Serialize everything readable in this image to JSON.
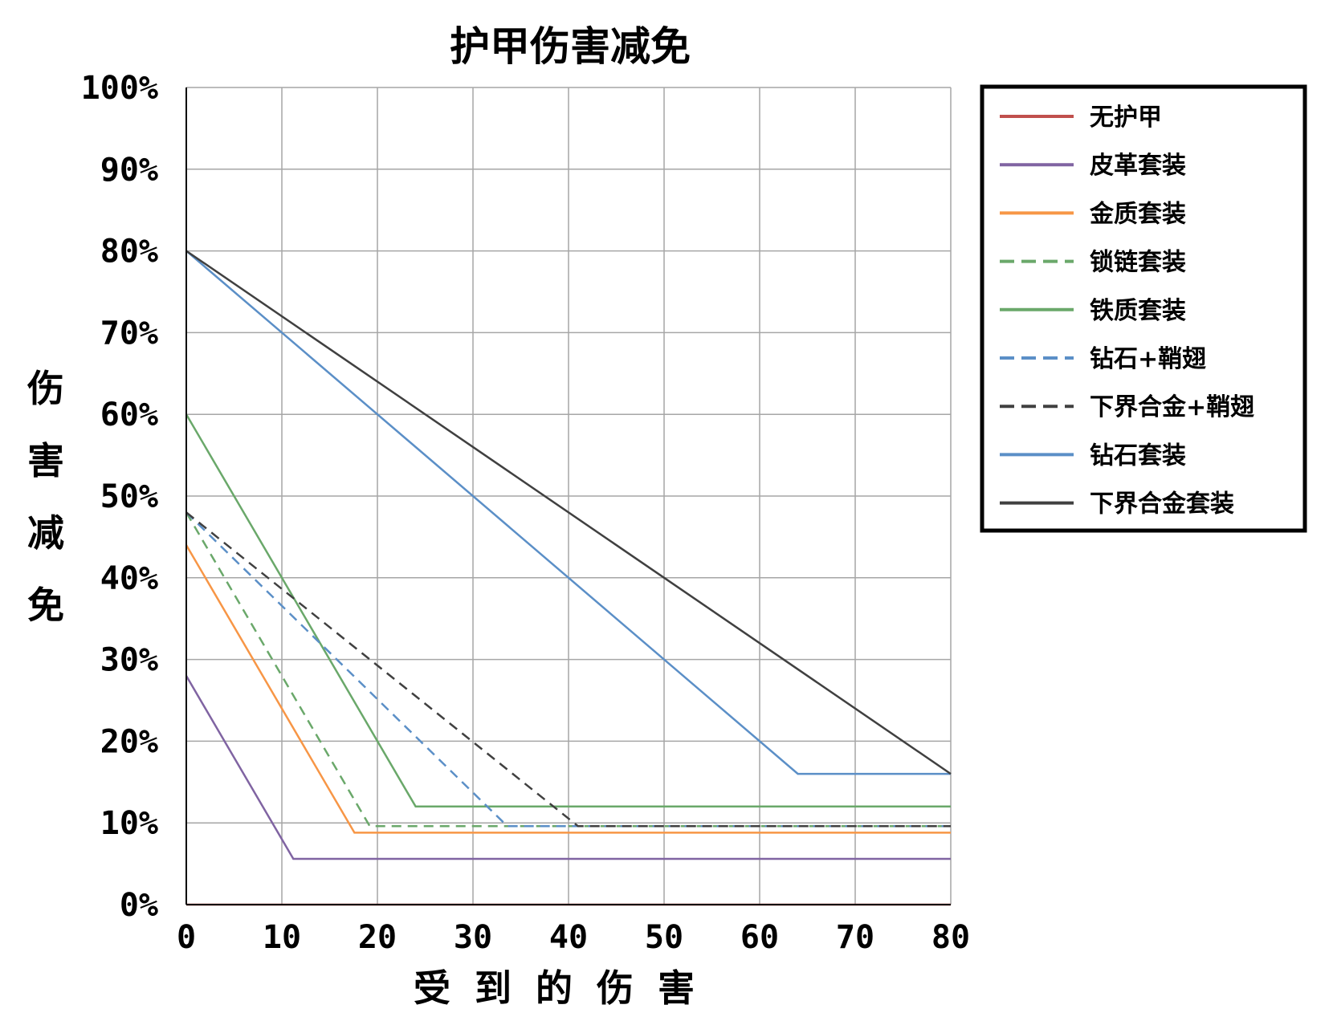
{
  "chart_data": {
    "type": "line",
    "title": "护甲伤害减免",
    "xlabel": "受到的伤害",
    "ylabel": "伤害减免",
    "xlim": [
      0,
      80
    ],
    "ylim": [
      0,
      100
    ],
    "x_ticks": [
      "0",
      "10",
      "20",
      "30",
      "40",
      "50",
      "60",
      "70",
      "80"
    ],
    "y_ticks": [
      "0%",
      "10%",
      "20%",
      "30%",
      "40%",
      "50%",
      "60%",
      "70%",
      "80%",
      "90%",
      "100%"
    ],
    "grid": true,
    "legend_position": "top-right",
    "series": [
      {
        "name": "无护甲",
        "color": "#c0504d",
        "dashed": false,
        "points": [
          [
            0,
            0
          ],
          [
            80,
            0
          ]
        ]
      },
      {
        "name": "皮革套装",
        "color": "#8064a2",
        "dashed": false,
        "points": [
          [
            0,
            28
          ],
          [
            11.2,
            5.6
          ],
          [
            80,
            5.6
          ]
        ]
      },
      {
        "name": "金质套装",
        "color": "#f79646",
        "dashed": false,
        "points": [
          [
            0,
            44
          ],
          [
            17.6,
            8.8
          ],
          [
            80,
            8.8
          ]
        ]
      },
      {
        "name": "锁链套装",
        "color": "#6aa86a",
        "dashed": true,
        "points": [
          [
            0,
            48
          ],
          [
            19.2,
            9.6
          ],
          [
            80,
            9.6
          ]
        ]
      },
      {
        "name": "铁质套装",
        "color": "#6aa86a",
        "dashed": false,
        "points": [
          [
            0,
            60
          ],
          [
            24,
            12
          ],
          [
            80,
            12
          ]
        ]
      },
      {
        "name": "钻石+鞘翅",
        "color": "#5b8fc7",
        "dashed": true,
        "points": [
          [
            0,
            48
          ],
          [
            33.6,
            9.6
          ],
          [
            80,
            9.6
          ]
        ]
      },
      {
        "name": "下界合金+鞘翅",
        "color": "#404040",
        "dashed": true,
        "points": [
          [
            0,
            48
          ],
          [
            41,
            9.6
          ],
          [
            80,
            9.6
          ]
        ]
      },
      {
        "name": "钻石套装",
        "color": "#5b8fc7",
        "dashed": false,
        "points": [
          [
            0,
            80
          ],
          [
            64,
            16
          ],
          [
            80,
            16
          ]
        ]
      },
      {
        "name": "下界合金套装",
        "color": "#404040",
        "dashed": false,
        "points": [
          [
            0,
            80
          ],
          [
            80,
            16
          ]
        ]
      }
    ]
  }
}
